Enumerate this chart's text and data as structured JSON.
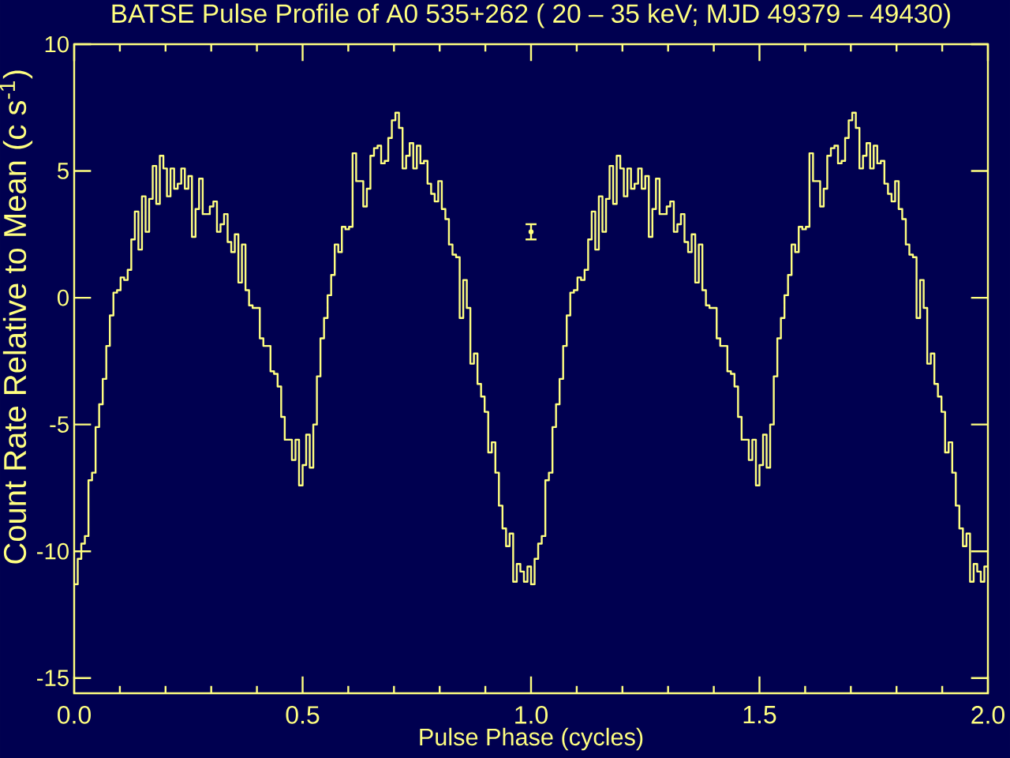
{
  "chart_data": {
    "type": "step",
    "title": "BATSE Pulse Profile of A0 535+262 ( 20 – 35 keV; MJD 49379 – 49430)",
    "xlabel": "Pulse Phase (cycles)",
    "ylabel": "Count Rate Relative to Mean (c s$^{-1}$)",
    "xlim": [
      0,
      2
    ],
    "ylim": [
      -15.6,
      10
    ],
    "xticks": [
      {
        "value": 0,
        "label": "0.0"
      },
      {
        "value": 0.1,
        "label": null
      },
      {
        "value": 0.2,
        "label": null
      },
      {
        "value": 0.3,
        "label": null
      },
      {
        "value": 0.4,
        "label": null
      },
      {
        "value": 0.5,
        "label": "0.5"
      },
      {
        "value": 0.6,
        "label": null
      },
      {
        "value": 0.7,
        "label": null
      },
      {
        "value": 0.8,
        "label": null
      },
      {
        "value": 0.9,
        "label": null
      },
      {
        "value": 1,
        "label": "1.0"
      },
      {
        "value": 1.1,
        "label": null
      },
      {
        "value": 1.2,
        "label": null
      },
      {
        "value": 1.3,
        "label": null
      },
      {
        "value": 1.4,
        "label": null
      },
      {
        "value": 1.5,
        "label": "1.5"
      },
      {
        "value": 1.6,
        "label": null
      },
      {
        "value": 1.7,
        "label": null
      },
      {
        "value": 1.8,
        "label": null
      },
      {
        "value": 1.9,
        "label": null
      },
      {
        "value": 2,
        "label": "2.0"
      }
    ],
    "yticks": [
      -15,
      -10,
      -5,
      0,
      5,
      10
    ],
    "marker": "none",
    "series": [
      {
        "color": "#ffff80",
        "x": [
          0,
          0.0078,
          0.0156,
          0.0234,
          0.0313,
          0.0391,
          0.0469,
          0.0547,
          0.0625,
          0.0703,
          0.0781,
          0.0859,
          0.0938,
          0.1016,
          0.1094,
          0.1172,
          0.125,
          0.1328,
          0.1406,
          0.1484,
          0.1563,
          0.1641,
          0.1719,
          0.1797,
          0.1875,
          0.1953,
          0.2031,
          0.2109,
          0.2188,
          0.2266,
          0.2344,
          0.2422,
          0.25,
          0.2578,
          0.2656,
          0.2734,
          0.2813,
          0.2891,
          0.2969,
          0.3047,
          0.3125,
          0.3203,
          0.3281,
          0.3359,
          0.3438,
          0.3516,
          0.3594,
          0.3672,
          0.375,
          0.3828,
          0.3906,
          0.3984,
          0.4063,
          0.4141,
          0.4219,
          0.4297,
          0.4375,
          0.4453,
          0.4531,
          0.4609,
          0.4688,
          0.4766,
          0.4844,
          0.4922,
          0.5,
          0.5078,
          0.5156,
          0.5234,
          0.5313,
          0.5391,
          0.5469,
          0.5547,
          0.5625,
          0.5703,
          0.5781,
          0.5859,
          0.5938,
          0.6016,
          0.6094,
          0.6172,
          0.625,
          0.6328,
          0.6406,
          0.6484,
          0.6563,
          0.6641,
          0.6719,
          0.6797,
          0.6875,
          0.6953,
          0.7031,
          0.7109,
          0.7188,
          0.7266,
          0.7344,
          0.7422,
          0.75,
          0.7578,
          0.7656,
          0.7734,
          0.7813,
          0.7891,
          0.7969,
          0.8047,
          0.8125,
          0.8203,
          0.8281,
          0.8359,
          0.8438,
          0.8516,
          0.8594,
          0.8672,
          0.875,
          0.8828,
          0.8906,
          0.8984,
          0.9063,
          0.9141,
          0.9219,
          0.9297,
          0.9375,
          0.9453,
          0.9531,
          0.9609,
          0.9688,
          0.9766,
          0.9844,
          0.9922,
          1,
          1.0078,
          1.0156,
          1.0234,
          1.0313,
          1.0391,
          1.0469,
          1.0547,
          1.0625,
          1.0703,
          1.0781,
          1.0859,
          1.0938,
          1.1016,
          1.1094,
          1.1172,
          1.125,
          1.1328,
          1.1406,
          1.1484,
          1.1563,
          1.1641,
          1.1719,
          1.1797,
          1.1875,
          1.1953,
          1.2031,
          1.2109,
          1.2188,
          1.2266,
          1.2344,
          1.2422,
          1.25,
          1.2578,
          1.2656,
          1.2734,
          1.2813,
          1.2891,
          1.2969,
          1.3047,
          1.3125,
          1.3203,
          1.3281,
          1.3359,
          1.3438,
          1.3516,
          1.3594,
          1.3672,
          1.375,
          1.3828,
          1.3906,
          1.3984,
          1.4063,
          1.4141,
          1.4219,
          1.4297,
          1.4375,
          1.4453,
          1.4531,
          1.4609,
          1.4688,
          1.4766,
          1.4844,
          1.4922,
          1.5,
          1.5078,
          1.5156,
          1.5234,
          1.5313,
          1.5391,
          1.5469,
          1.5547,
          1.5625,
          1.5703,
          1.5781,
          1.5859,
          1.5938,
          1.6016,
          1.6094,
          1.6172,
          1.625,
          1.6328,
          1.6406,
          1.6484,
          1.6563,
          1.6641,
          1.6719,
          1.6797,
          1.6875,
          1.6953,
          1.7031,
          1.7109,
          1.7188,
          1.7266,
          1.7344,
          1.7422,
          1.75,
          1.7578,
          1.7656,
          1.7734,
          1.7813,
          1.7891,
          1.7969,
          1.8047,
          1.8125,
          1.8203,
          1.8281,
          1.8359,
          1.8438,
          1.8516,
          1.8594,
          1.8672,
          1.875,
          1.8828,
          1.8906,
          1.8984,
          1.9063,
          1.9141,
          1.9219,
          1.9297,
          1.9375,
          1.9453,
          1.9531,
          1.9609,
          1.9688,
          1.9766,
          1.9844,
          1.9922,
          2
        ],
        "values": [
          -11.3,
          -10.3,
          -9.7,
          -9.4,
          -7.2,
          -6.9,
          -5.1,
          -4.2,
          -3.2,
          -1.9,
          -0.7,
          0.2,
          0.3,
          0.8,
          0.7,
          1.1,
          2.3,
          3.4,
          1.9,
          4.0,
          2.6,
          3.9,
          5.2,
          3.7,
          5.6,
          5.1,
          4.0,
          5.1,
          4.3,
          4.5,
          5.1,
          4.3,
          4.8,
          2.4,
          3.5,
          4.7,
          3.3,
          3.3,
          3.6,
          3.8,
          2.6,
          2.9,
          3.3,
          2.2,
          1.8,
          2.5,
          0.6,
          2.1,
          0.3,
          -0.3,
          -0.4,
          -0.4,
          -1.6,
          -1.9,
          -1.9,
          -2.9,
          -3.0,
          -3.5,
          -4.7,
          -5.6,
          -5.6,
          -6.4,
          -5.6,
          -7.4,
          -6.6,
          -5.4,
          -6.7,
          -5.0,
          -3.1,
          -1.6,
          -0.8,
          0.1,
          0.9,
          2.1,
          1.8,
          2.8,
          2.7,
          2.8,
          5.7,
          4.6,
          4.6,
          3.6,
          4.3,
          5.6,
          5.9,
          6.0,
          5.3,
          5.4,
          6.3,
          7.0,
          7.3,
          6.7,
          5.1,
          5.6,
          6.1,
          5.1,
          6.0,
          5.3,
          5.4,
          4.5,
          4.1,
          3.8,
          4.6,
          3.5,
          3.1,
          2.1,
          1.7,
          1.6,
          -0.8,
          0.7,
          -0.4,
          -2.6,
          -2.2,
          -3.4,
          -3.9,
          -4.5,
          -6.1,
          -5.7,
          -6.9,
          -8.2,
          -9.1,
          -9.8,
          -9.3,
          -11.2,
          -10.5,
          -10.8,
          -11.2,
          -10.6,
          -11.3,
          -10.3,
          -9.7,
          -9.4,
          -7.2,
          -6.9,
          -5.1,
          -4.2,
          -3.2,
          -1.9,
          -0.7,
          0.2,
          0.3,
          0.8,
          0.7,
          1.1,
          2.3,
          3.4,
          1.9,
          4.0,
          2.6,
          3.9,
          5.2,
          3.7,
          5.6,
          5.1,
          4.0,
          5.1,
          4.3,
          4.5,
          5.1,
          4.3,
          4.8,
          2.4,
          3.5,
          4.7,
          3.3,
          3.3,
          3.6,
          3.8,
          2.6,
          2.9,
          3.3,
          2.2,
          1.8,
          2.5,
          0.6,
          2.1,
          0.3,
          -0.3,
          -0.4,
          -0.4,
          -1.6,
          -1.9,
          -1.9,
          -2.9,
          -3.0,
          -3.5,
          -4.7,
          -5.6,
          -5.6,
          -6.4,
          -5.6,
          -7.4,
          -6.6,
          -5.4,
          -6.7,
          -5.0,
          -3.1,
          -1.6,
          -0.8,
          0.1,
          0.9,
          2.1,
          1.8,
          2.8,
          2.7,
          2.8,
          5.7,
          4.6,
          4.6,
          3.6,
          4.3,
          5.6,
          5.9,
          6.0,
          5.3,
          5.4,
          6.3,
          7.0,
          7.3,
          6.7,
          5.1,
          5.6,
          6.1,
          5.1,
          6.0,
          5.3,
          5.4,
          4.5,
          4.1,
          3.8,
          4.6,
          3.5,
          3.1,
          2.1,
          1.7,
          1.6,
          -0.8,
          0.7,
          -0.4,
          -2.6,
          -2.2,
          -3.4,
          -3.9,
          -4.5,
          -6.1,
          -5.7,
          -6.9,
          -8.2,
          -9.1,
          -9.8,
          -9.3,
          -11.2,
          -10.5,
          -10.8,
          -11.2,
          -10.6,
          -10.6
        ]
      },
      {
        "type": "scatter",
        "color": "#ffff80",
        "marker": "circle",
        "x": [
          1.0
        ],
        "values": [
          2.6
        ],
        "errors": [
          0.3
        ]
      }
    ]
  }
}
